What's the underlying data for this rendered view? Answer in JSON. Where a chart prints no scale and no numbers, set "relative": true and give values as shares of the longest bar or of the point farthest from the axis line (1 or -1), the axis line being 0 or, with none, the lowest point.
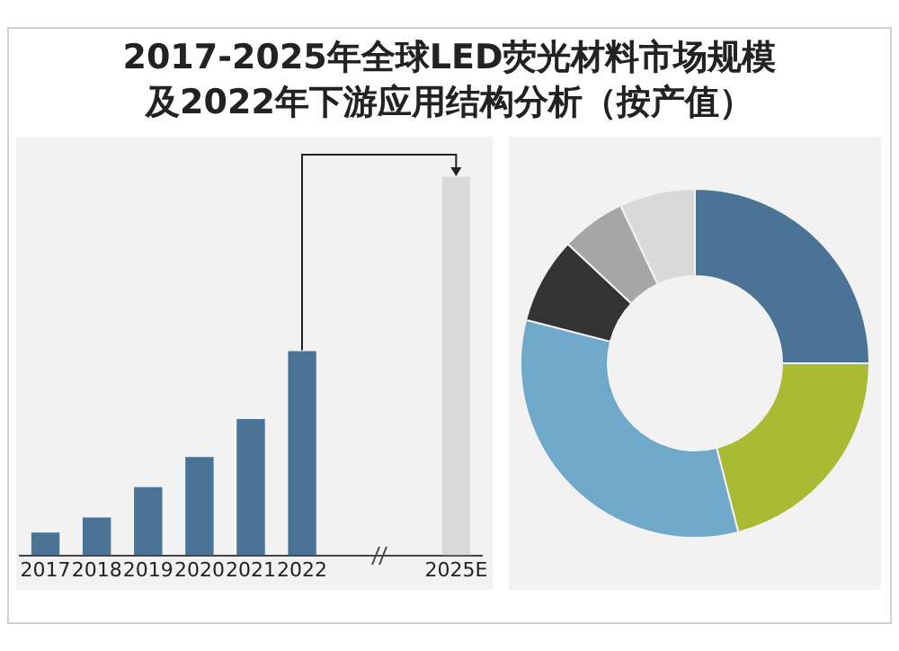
{
  "chart_data": [
    {
      "type": "bar",
      "title": "2017-2025年全球LED荧光材料市场规模及2022年下游应用结构分析（按产值）",
      "categories": [
        "2017",
        "2018",
        "2019",
        "2020",
        "2021",
        "2022",
        null,
        null,
        "2025E"
      ],
      "values": [
        0.06,
        0.1,
        0.18,
        0.26,
        0.36,
        0.54,
        null,
        null,
        1
      ],
      "colors": [
        "#4a7396",
        "#4a7396",
        "#4a7396",
        "#4a7396",
        "#4a7396",
        "#4a7396",
        "#4a7396",
        "#4a7396",
        "#d9d9d9"
      ],
      "relative": true,
      "legend": false
    },
    {
      "type": "donut",
      "categories": [
        null,
        null,
        null,
        null,
        null,
        null
      ],
      "values": [
        25,
        21,
        33,
        8,
        6,
        7
      ],
      "colors": [
        "#4a7396",
        "#a9bb32",
        "#6fa8c8",
        "#333333",
        "#a6a6a6",
        "#d9d9d9"
      ],
      "legend": false
    }
  ]
}
